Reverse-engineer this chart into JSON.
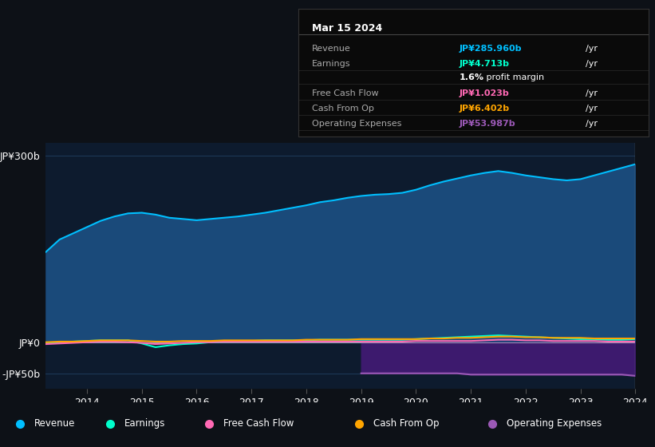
{
  "bg_color": "#0d1117",
  "plot_bg_color": "#0d1b2e",
  "grid_color": "#1e3a5a",
  "years": [
    2013.25,
    2013.5,
    2013.75,
    2014.0,
    2014.25,
    2014.5,
    2014.75,
    2015.0,
    2015.25,
    2015.5,
    2015.75,
    2016.0,
    2016.25,
    2016.5,
    2016.75,
    2017.0,
    2017.25,
    2017.5,
    2017.75,
    2018.0,
    2018.25,
    2018.5,
    2018.75,
    2019.0,
    2019.25,
    2019.5,
    2019.75,
    2020.0,
    2020.25,
    2020.5,
    2020.75,
    2021.0,
    2021.25,
    2021.5,
    2021.75,
    2022.0,
    2022.25,
    2022.5,
    2022.75,
    2023.0,
    2023.25,
    2023.5,
    2023.75,
    2024.0
  ],
  "revenue": [
    145,
    165,
    175,
    185,
    195,
    202,
    207,
    208,
    205,
    200,
    198,
    196,
    198,
    200,
    202,
    205,
    208,
    212,
    216,
    220,
    225,
    228,
    232,
    235,
    237,
    238,
    240,
    245,
    252,
    258,
    263,
    268,
    272,
    275,
    272,
    268,
    265,
    262,
    260,
    262,
    268,
    274,
    280,
    286
  ],
  "earnings": [
    -2,
    0,
    1,
    2,
    3,
    3,
    3,
    -2,
    -8,
    -5,
    -3,
    -2,
    0,
    1,
    2,
    2,
    3,
    3,
    3,
    3,
    4,
    4,
    4,
    4,
    4,
    4,
    4,
    5,
    6,
    7,
    8,
    9,
    10,
    11,
    10,
    9,
    8,
    7,
    6,
    5,
    5,
    4,
    4,
    5
  ],
  "free_cash_flow": [
    -3,
    -2,
    -1,
    0,
    1,
    1,
    0,
    -1,
    -3,
    -2,
    -1,
    0,
    0,
    1,
    1,
    1,
    1,
    1,
    1,
    1,
    1,
    1,
    1,
    1,
    1,
    1,
    1,
    2,
    2,
    2,
    2,
    2,
    3,
    4,
    4,
    3,
    3,
    2,
    2,
    2,
    2,
    1,
    1,
    1
  ],
  "cash_from_op": [
    0,
    1,
    1,
    2,
    3,
    3,
    3,
    2,
    1,
    1,
    2,
    2,
    2,
    3,
    3,
    3,
    3,
    3,
    3,
    4,
    4,
    4,
    4,
    5,
    5,
    5,
    5,
    5,
    6,
    6,
    7,
    7,
    8,
    9,
    9,
    8,
    8,
    7,
    7,
    7,
    6,
    6,
    6,
    6
  ],
  "op_expenses_x": [
    2019.0,
    2019.25,
    2019.5,
    2019.75,
    2020.0,
    2020.25,
    2020.5,
    2020.75,
    2021.0,
    2021.25,
    2021.5,
    2021.75,
    2022.0,
    2022.25,
    2022.5,
    2022.75,
    2023.0,
    2023.25,
    2023.5,
    2023.75,
    2024.0
  ],
  "op_expenses": [
    -50,
    -50,
    -50,
    -50,
    -50,
    -50,
    -50,
    -50,
    -52,
    -52,
    -52,
    -52,
    -52,
    -52,
    -52,
    -52,
    -52,
    -52,
    -52,
    -52,
    -54
  ],
  "revenue_color": "#00bfff",
  "earnings_color": "#00ffcc",
  "free_cash_flow_color": "#ff69b4",
  "cash_from_op_color": "#ffa500",
  "op_expenses_color": "#9b59b6",
  "revenue_fill": "#1a4a7a",
  "op_expenses_fill": "#3d1a6e",
  "ylim": [
    -75,
    320
  ],
  "yticks": [
    -50,
    0,
    300
  ],
  "ytick_labels": [
    "-JP¥50b",
    "JP¥0",
    "JP¥300b"
  ],
  "xticks": [
    2014,
    2015,
    2016,
    2017,
    2018,
    2019,
    2020,
    2021,
    2022,
    2023,
    2024
  ],
  "tooltip_title": "Mar 15 2024",
  "tooltip_rows": [
    {
      "label": "Revenue",
      "value": "JP¥285.960b",
      "unit": "/yr",
      "color": "#00bfff"
    },
    {
      "label": "Earnings",
      "value": "JP¥4.713b",
      "unit": "/yr",
      "color": "#00ffcc"
    },
    {
      "label": "",
      "value": "1.6%",
      "unit": " profit margin",
      "color": "#ffffff"
    },
    {
      "label": "Free Cash Flow",
      "value": "JP¥1.023b",
      "unit": "/yr",
      "color": "#ff69b4"
    },
    {
      "label": "Cash From Op",
      "value": "JP¥6.402b",
      "unit": "/yr",
      "color": "#ffa500"
    },
    {
      "label": "Operating Expenses",
      "value": "JP¥53.987b",
      "unit": "/yr",
      "color": "#9b59b6"
    }
  ],
  "legend_items": [
    {
      "label": "Revenue",
      "color": "#00bfff"
    },
    {
      "label": "Earnings",
      "color": "#00ffcc"
    },
    {
      "label": "Free Cash Flow",
      "color": "#ff69b4"
    },
    {
      "label": "Cash From Op",
      "color": "#ffa500"
    },
    {
      "label": "Operating Expenses",
      "color": "#9b59b6"
    }
  ]
}
